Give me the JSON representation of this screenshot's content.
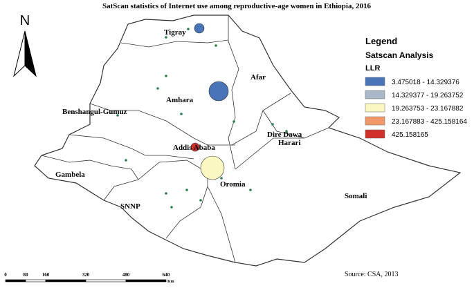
{
  "title": "SatScan statistics of Internet use among reproductive-age women in Ethiopia, 2016",
  "north_label": "N",
  "regions": [
    {
      "label": "Tigray"
    },
    {
      "label": "Afar"
    },
    {
      "label": "Amhara"
    },
    {
      "label": "Benshangul-Gumuz"
    },
    {
      "label": "Dire Dawa"
    },
    {
      "label": "Harari"
    },
    {
      "label": "Addis Ababa"
    },
    {
      "label": "Gambela"
    },
    {
      "label": "Oromia"
    },
    {
      "label": "Somali"
    },
    {
      "label": "SNNP"
    }
  ],
  "legend": {
    "title": "Legend",
    "subtitle": "Satscan Analysis",
    "field": "LLR",
    "items": [
      {
        "label": "3.475018 - 14.329376",
        "color": "#4a74b8"
      },
      {
        "label": "14.329377 - 19.263752",
        "color": "#a9b8c6"
      },
      {
        "label": "19.263753 - 23.167882",
        "color": "#fbf7c2"
      },
      {
        "label": "23.167883 - 425.158164",
        "color": "#f0996a"
      },
      {
        "label": "425.158165",
        "color": "#d0302a"
      }
    ]
  },
  "scale_bar": {
    "ticks": [
      0,
      80,
      160,
      320,
      480,
      640
    ],
    "unit": "Km"
  },
  "source": "Source: CSA, 2013"
}
